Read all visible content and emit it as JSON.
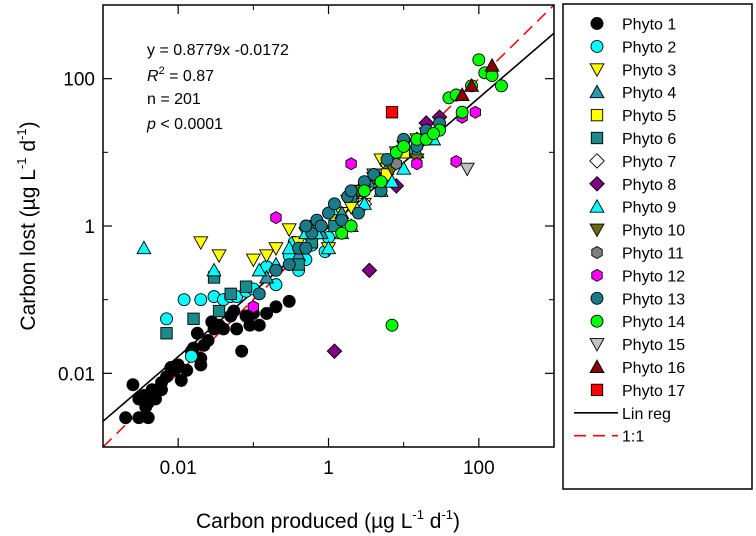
{
  "chart_data": {
    "type": "scatter",
    "xscale": "log",
    "yscale": "log",
    "xlim": [
      0.001,
      1000
    ],
    "ylim": [
      0.001,
      1000
    ],
    "xlabel": {
      "main": "Carbon produced (µg L",
      "sup1": "-1",
      "mid": " d",
      "sup2": "-1",
      "end": ")"
    },
    "ylabel": {
      "main": "Carbon lost (µg L",
      "sup1": "-1",
      "mid": " d",
      "sup2": "-1",
      "end": ")"
    },
    "x_ticks": [
      {
        "value": 0.01,
        "label": "0.01"
      },
      {
        "value": 1,
        "label": "1"
      },
      {
        "value": 100,
        "label": "100"
      }
    ],
    "y_ticks": [
      {
        "value": 0.01,
        "label": "0.01"
      },
      {
        "value": 1,
        "label": "1"
      },
      {
        "value": 100,
        "label": "100"
      }
    ],
    "minor_ticks": [
      0.001,
      0.1,
      10,
      1000
    ],
    "stats": {
      "equation": "y = 0.8779x -0.0172",
      "r2_sym": "R",
      "r2_exp": "2",
      "r2_val": " = 0.87",
      "n": "n = 201",
      "p_sym": "p",
      "p_val": " < 0.0001"
    },
    "regression": {
      "slope": 0.8779,
      "intercept": -0.0172
    },
    "one_to_one": {
      "slope": 1,
      "intercept": 0
    },
    "legend_position": "outside-right",
    "series": [
      {
        "name": "Phyto 1",
        "marker": "circle",
        "color": "#000000",
        "points": [
          [
            0.002,
            0.0025
          ],
          [
            0.0025,
            0.007
          ],
          [
            0.003,
            0.0045
          ],
          [
            0.0035,
            0.005
          ],
          [
            0.0037,
            0.0035
          ],
          [
            0.004,
            0.004
          ],
          [
            0.0045,
            0.006
          ],
          [
            0.004,
            0.0025
          ],
          [
            0.005,
            0.0045
          ],
          [
            0.006,
            0.006
          ],
          [
            0.006,
            0.0075
          ],
          [
            0.007,
            0.009
          ],
          [
            0.008,
            0.012
          ],
          [
            0.009,
            0.011
          ],
          [
            0.01,
            0.013
          ],
          [
            0.011,
            0.008
          ],
          [
            0.013,
            0.011
          ],
          [
            0.015,
            0.02
          ],
          [
            0.016,
            0.022
          ],
          [
            0.018,
            0.035
          ],
          [
            0.02,
            0.013
          ],
          [
            0.02,
            0.016
          ],
          [
            0.022,
            0.024
          ],
          [
            0.025,
            0.028
          ],
          [
            0.028,
            0.05
          ],
          [
            0.03,
            0.04
          ],
          [
            0.035,
            0.045
          ],
          [
            0.04,
            0.04
          ],
          [
            0.05,
            0.06
          ],
          [
            0.055,
            0.07
          ],
          [
            0.06,
            0.04
          ],
          [
            0.07,
            0.02
          ],
          [
            0.08,
            0.06
          ],
          [
            0.09,
            0.045
          ],
          [
            0.1,
            0.065
          ],
          [
            0.12,
            0.045
          ],
          [
            0.15,
            0.065
          ],
          [
            0.2,
            0.08
          ],
          [
            0.3,
            0.095
          ],
          [
            0.003,
            0.0025
          ]
        ]
      },
      {
        "name": "Phyto 2",
        "marker": "circle",
        "color": "#00ffff",
        "points": [
          [
            0.007,
            0.055
          ],
          [
            0.012,
            0.1
          ],
          [
            0.015,
            0.017
          ],
          [
            0.02,
            0.1
          ],
          [
            0.03,
            0.11
          ],
          [
            0.04,
            0.1
          ],
          [
            0.05,
            0.11
          ],
          [
            0.06,
            0.11
          ],
          [
            0.08,
            0.13
          ],
          [
            0.1,
            0.14
          ],
          [
            0.15,
            0.28
          ],
          [
            0.2,
            0.16
          ],
          [
            0.3,
            0.4
          ],
          [
            0.35,
            0.6
          ],
          [
            0.4,
            0.25
          ],
          [
            0.5,
            0.35
          ],
          [
            0.6,
            0.55
          ],
          [
            0.7,
            0.8
          ],
          [
            0.8,
            1.0
          ],
          [
            0.9,
            0.45
          ],
          [
            1.0,
            0.7
          ],
          [
            1.2,
            1.4
          ]
        ]
      },
      {
        "name": "Phyto 3",
        "marker": "triangle-down",
        "color": "#ffff00",
        "points": [
          [
            0.02,
            0.6
          ],
          [
            0.035,
            0.4
          ],
          [
            0.1,
            0.35
          ],
          [
            0.2,
            0.5
          ],
          [
            0.3,
            0.9
          ],
          [
            0.4,
            0.6
          ],
          [
            0.5,
            0.8
          ],
          [
            0.7,
            1.0
          ],
          [
            1.0,
            0.5
          ],
          [
            1.2,
            1.2
          ],
          [
            1.5,
            1.5
          ],
          [
            1.8,
            2.2
          ],
          [
            2.0,
            1.8
          ],
          [
            2.5,
            3.0
          ],
          [
            3.0,
            2.0
          ],
          [
            4.0,
            5.0
          ],
          [
            5.0,
            8.0
          ],
          [
            6.0,
            6.0
          ],
          [
            8.0,
            10.0
          ],
          [
            10.0,
            12.0
          ],
          [
            15.0,
            15.0
          ],
          [
            20.0,
            18.0
          ],
          [
            0.15,
            0.4
          ]
        ]
      },
      {
        "name": "Phyto 4",
        "marker": "triangle-up",
        "color": "#2a9aaa",
        "points": [
          [
            0.15,
            0.2
          ],
          [
            0.4,
            0.4
          ],
          [
            0.8,
            0.8
          ],
          [
            1.5,
            1.5
          ],
          [
            2.5,
            3.0
          ],
          [
            4.0,
            4.0
          ],
          [
            6.0,
            6.0
          ],
          [
            8.0,
            10.0
          ],
          [
            12.0,
            10.0
          ],
          [
            20.0,
            20.0
          ]
        ]
      },
      {
        "name": "Phyto 5",
        "marker": "square",
        "color": "#ffff00",
        "points": [
          [
            6.0,
            5.0
          ],
          [
            10.0,
            10.0
          ]
        ]
      },
      {
        "name": "Phyto 6",
        "marker": "square",
        "color": "#1a8a8a",
        "points": [
          [
            0.007,
            0.035
          ],
          [
            0.016,
            0.055
          ],
          [
            0.03,
            0.2
          ],
          [
            0.035,
            0.07
          ],
          [
            0.05,
            0.12
          ],
          [
            0.08,
            0.15
          ],
          [
            0.4,
            0.3
          ],
          [
            0.6,
            0.6
          ],
          [
            1.2,
            1.0
          ],
          [
            2.0,
            2.5
          ],
          [
            3.0,
            3.5
          ]
        ]
      },
      {
        "name": "Phyto 7",
        "marker": "diamond",
        "color": "#ffffff",
        "points": [
          [
            3.0,
            2.0
          ],
          [
            7.0,
            8.0
          ]
        ]
      },
      {
        "name": "Phyto 8",
        "marker": "diamond",
        "color": "#800080",
        "points": [
          [
            1.2,
            0.02
          ],
          [
            3.5,
            0.25
          ],
          [
            8.0,
            3.5
          ],
          [
            15.0,
            15.0
          ],
          [
            20.0,
            25.0
          ],
          [
            30.0,
            30.0
          ]
        ]
      },
      {
        "name": "Phyto 9",
        "marker": "triangle-up",
        "color": "#00ffff",
        "points": [
          [
            0.0035,
            0.5
          ],
          [
            0.03,
            0.25
          ],
          [
            0.12,
            0.25
          ],
          [
            0.2,
            0.3
          ],
          [
            0.3,
            0.5
          ],
          [
            0.5,
            0.8
          ],
          [
            0.7,
            0.8
          ],
          [
            1.0,
            0.5
          ],
          [
            1.5,
            0.8
          ],
          [
            2.0,
            1.0
          ],
          [
            3.0,
            2.0
          ],
          [
            5.0,
            3.0
          ],
          [
            7.0,
            4.0
          ],
          [
            10.0,
            6.0
          ],
          [
            15.0,
            10.0
          ],
          [
            25.0,
            15.0
          ]
        ]
      },
      {
        "name": "Phyto 10",
        "marker": "triangle-down",
        "color": "#6a6a10",
        "points": [
          [
            2.5,
            3.0
          ],
          [
            4.0,
            4.5
          ],
          [
            7.0,
            6.0
          ],
          [
            15.0,
            8.0
          ]
        ]
      },
      {
        "name": "Phyto 11",
        "marker": "hexagon",
        "color": "#808080",
        "points": [
          [
            8.0,
            7.0
          ],
          [
            20.0,
            20.0
          ]
        ]
      },
      {
        "name": "Phyto 12",
        "marker": "hexagon",
        "color": "#ff00ff",
        "points": [
          [
            0.1,
            0.08
          ],
          [
            0.2,
            1.3
          ],
          [
            2.0,
            7.0
          ],
          [
            15.0,
            7.0
          ],
          [
            50.0,
            7.5
          ],
          [
            60.0,
            30.0
          ],
          [
            90.0,
            35.0
          ]
        ]
      },
      {
        "name": "Phyto 13",
        "marker": "circle",
        "color": "#1a7a8a",
        "points": [
          [
            0.12,
            0.12
          ],
          [
            0.2,
            0.25
          ],
          [
            0.3,
            0.3
          ],
          [
            0.4,
            0.5
          ],
          [
            0.5,
            0.5
          ],
          [
            0.6,
            0.8
          ],
          [
            0.7,
            1.2
          ],
          [
            0.8,
            1.0
          ],
          [
            1.0,
            1.5
          ],
          [
            1.2,
            2.0
          ],
          [
            1.5,
            1.2
          ],
          [
            1.8,
            2.5
          ],
          [
            2.0,
            3.0
          ],
          [
            2.5,
            1.5
          ],
          [
            3.0,
            4.0
          ],
          [
            4.0,
            5.0
          ],
          [
            5.0,
            3.0
          ],
          [
            6.0,
            8.0
          ],
          [
            8.0,
            10.0
          ],
          [
            10.0,
            15.0
          ],
          [
            15.0,
            12.0
          ],
          [
            20.0,
            20.0
          ],
          [
            30.0,
            25.0
          ],
          [
            0.5,
            1.0
          ]
        ]
      },
      {
        "name": "Phyto 14",
        "marker": "circle",
        "color": "#00ff00",
        "points": [
          [
            1.5,
            0.8
          ],
          [
            2.0,
            1.0
          ],
          [
            3.0,
            3.0
          ],
          [
            5.0,
            4.0
          ],
          [
            7.0,
            0.045
          ],
          [
            8.0,
            10.0
          ],
          [
            10.0,
            12.0
          ],
          [
            15.0,
            15.0
          ],
          [
            20.0,
            15.0
          ],
          [
            30.0,
            20.0
          ],
          [
            40.0,
            55.0
          ],
          [
            50.0,
            60.0
          ],
          [
            80.0,
            80.0
          ],
          [
            100.0,
            180.0
          ],
          [
            120.0,
            120.0
          ],
          [
            200.0,
            80.0
          ],
          [
            150.0,
            110.0
          ],
          [
            60.0,
            35.0
          ],
          [
            25.0,
            18.0
          ]
        ]
      },
      {
        "name": "Phyto 15",
        "marker": "triangle-down",
        "color": "#c0c0c0",
        "points": [
          [
            70.0,
            6.0
          ]
        ]
      },
      {
        "name": "Phyto 16",
        "marker": "triangle-up",
        "color": "#8b0000",
        "points": [
          [
            60.0,
            60.0
          ],
          [
            80.0,
            80.0
          ],
          [
            150.0,
            150.0
          ]
        ]
      },
      {
        "name": "Phyto 17",
        "marker": "square",
        "color": "#ff0000",
        "points": [
          [
            7.0,
            35.0
          ]
        ]
      }
    ],
    "legend": [
      {
        "label": "Phyto 1",
        "marker": "circle",
        "color": "#000000"
      },
      {
        "label": "Phyto 2",
        "marker": "circle",
        "color": "#00ffff"
      },
      {
        "label": "Phyto 3",
        "marker": "triangle-down",
        "color": "#ffff00"
      },
      {
        "label": "Phyto 4",
        "marker": "triangle-up",
        "color": "#2a9aaa"
      },
      {
        "label": "Phyto 5",
        "marker": "square",
        "color": "#ffff00"
      },
      {
        "label": "Phyto 6",
        "marker": "square",
        "color": "#1a8a8a"
      },
      {
        "label": "Phyto 7",
        "marker": "diamond",
        "color": "#ffffff"
      },
      {
        "label": "Phyto 8",
        "marker": "diamond",
        "color": "#800080"
      },
      {
        "label": "Phyto 9",
        "marker": "triangle-up",
        "color": "#00ffff"
      },
      {
        "label": "Phyto 10",
        "marker": "triangle-down",
        "color": "#6a6a10"
      },
      {
        "label": "Phyto 11",
        "marker": "hexagon",
        "color": "#808080"
      },
      {
        "label": "Phyto 12",
        "marker": "hexagon",
        "color": "#ff00ff"
      },
      {
        "label": "Phyto 13",
        "marker": "circle",
        "color": "#1a7a8a"
      },
      {
        "label": "Phyto 14",
        "marker": "circle",
        "color": "#00ff00"
      },
      {
        "label": "Phyto 15",
        "marker": "triangle-down",
        "color": "#c0c0c0"
      },
      {
        "label": "Phyto 16",
        "marker": "triangle-up",
        "color": "#8b0000"
      },
      {
        "label": "Phyto 17",
        "marker": "square",
        "color": "#ff0000"
      },
      {
        "label": "Lin reg",
        "line": "solid",
        "color": "#000000"
      },
      {
        "label": "1:1",
        "line": "dashed",
        "color": "#ff0000"
      }
    ]
  }
}
